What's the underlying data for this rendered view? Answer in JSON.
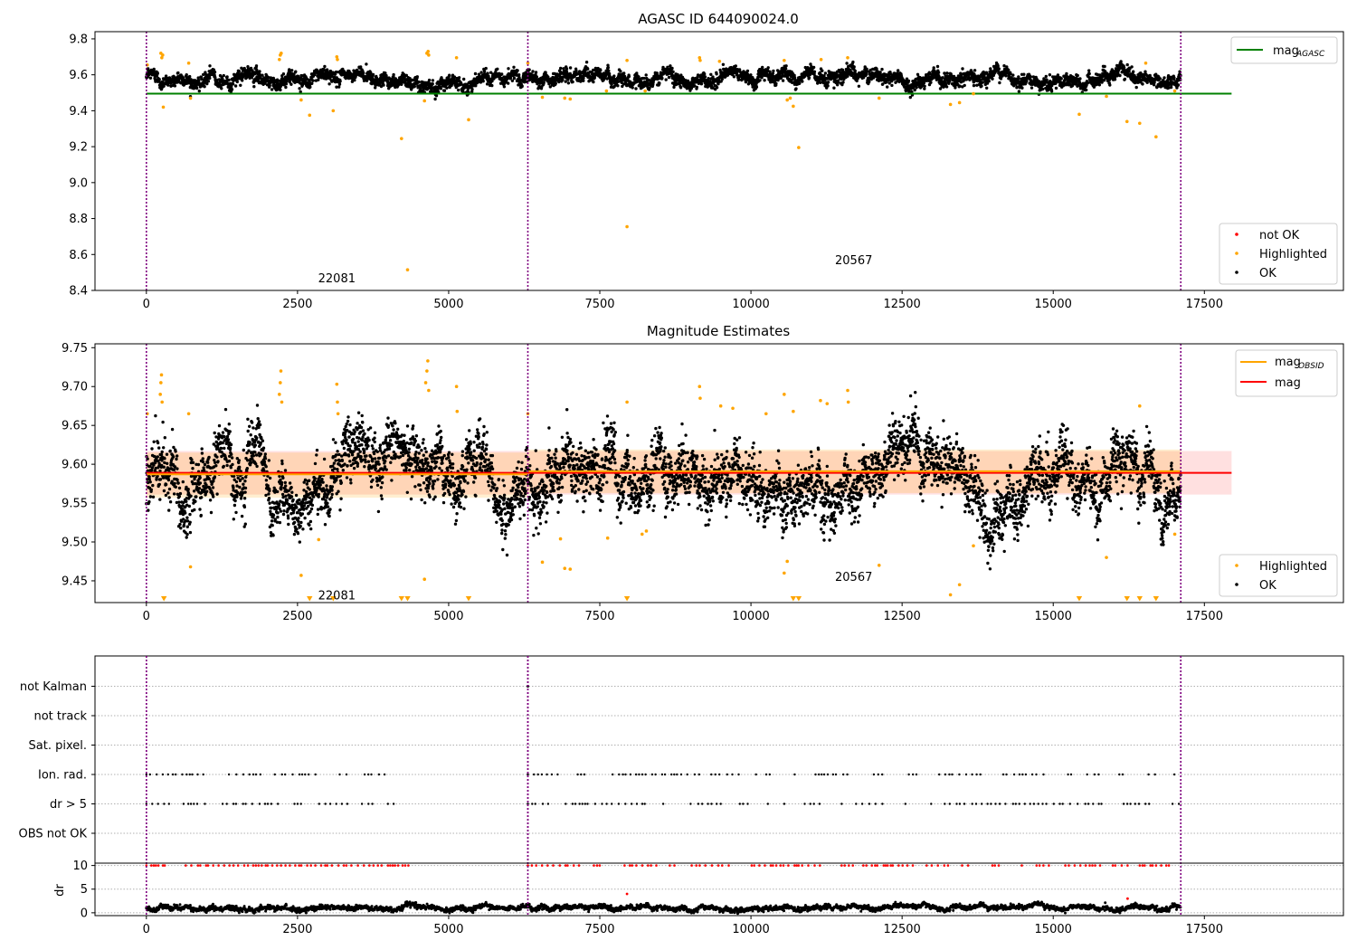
{
  "figure": {
    "colors": {
      "ok": "#000000",
      "not_ok": "#ff0000",
      "highlighted": "#ffa500",
      "agasc_line": "#008000",
      "mag_line": "#ff0000",
      "obsid_line": "#ffa500",
      "obs_boundary": "#800080",
      "band": "#ff0000"
    }
  },
  "chart_data": [
    {
      "type": "scatter",
      "title": "AGASC ID 644090024.0",
      "xlim": [
        -850,
        19800
      ],
      "ylim": [
        8.4,
        9.84
      ],
      "xticks": [
        "0",
        "2500",
        "5000",
        "7500",
        "10000",
        "12500",
        "15000",
        "17500"
      ],
      "yticks": [
        "8.4",
        "8.6",
        "8.8",
        "9.0",
        "9.2",
        "9.4",
        "9.6",
        "9.8"
      ],
      "grid": false,
      "obs_boundaries": [
        0,
        6310,
        17110
      ],
      "obsid_labels": [
        {
          "text": "22081",
          "x": 3150,
          "y": 8.47
        },
        {
          "text": "20567",
          "x": 11700,
          "y": 8.57
        }
      ],
      "hlines": [
        {
          "name": "mag_AGASC",
          "value": 9.495,
          "x": [
            0,
            17950
          ],
          "color": "#008000"
        }
      ],
      "legends": [
        {
          "placement": "upper-right",
          "entries": [
            {
              "label": "mag",
              "subscript": "AGASC",
              "kind": "line",
              "color": "#008000"
            }
          ]
        },
        {
          "placement": "lower-right",
          "entries": [
            {
              "label": "not OK",
              "kind": "dot",
              "color": "#ff0000"
            },
            {
              "label": "Highlighted",
              "kind": "dot",
              "color": "#ffa500"
            },
            {
              "label": "OK",
              "kind": "dot",
              "color": "#000000"
            }
          ]
        }
      ],
      "series": [
        {
          "name": "OK",
          "description": "dense black band",
          "x_range": [
            0,
            17110
          ],
          "y_mean": 9.585,
          "y_spread": 0.03,
          "color": "#000000"
        },
        {
          "name": "Highlighted",
          "color": "#ffa500",
          "points": [
            [
              15,
              9.655
            ],
            [
              240,
              9.72
            ],
            [
              255,
              9.695
            ],
            [
              270,
              9.71
            ],
            [
              280,
              9.42
            ],
            [
              700,
              9.665
            ],
            [
              730,
              9.47
            ],
            [
              2200,
              9.685
            ],
            [
              2215,
              9.71
            ],
            [
              2230,
              9.72
            ],
            [
              2560,
              9.46
            ],
            [
              2700,
              9.375
            ],
            [
              3090,
              9.4
            ],
            [
              3150,
              9.7
            ],
            [
              3160,
              9.685
            ],
            [
              4220,
              9.245
            ],
            [
              4320,
              8.515
            ],
            [
              4600,
              9.455
            ],
            [
              4640,
              9.72
            ],
            [
              4660,
              9.73
            ],
            [
              4670,
              9.71
            ],
            [
              5130,
              9.695
            ],
            [
              5330,
              9.35
            ],
            [
              6310,
              9.665
            ],
            [
              6550,
              9.475
            ],
            [
              6920,
              9.47
            ],
            [
              7010,
              9.465
            ],
            [
              7610,
              9.51
            ],
            [
              7950,
              9.68
            ],
            [
              7950,
              8.755
            ],
            [
              8250,
              9.51
            ],
            [
              9150,
              9.695
            ],
            [
              9160,
              9.68
            ],
            [
              9480,
              9.675
            ],
            [
              10550,
              9.68
            ],
            [
              10600,
              9.46
            ],
            [
              10650,
              9.47
            ],
            [
              10700,
              9.425
            ],
            [
              10790,
              9.195
            ],
            [
              11160,
              9.685
            ],
            [
              11600,
              9.695
            ],
            [
              12120,
              9.47
            ],
            [
              13300,
              9.435
            ],
            [
              13450,
              9.445
            ],
            [
              13680,
              9.495
            ],
            [
              15430,
              9.38
            ],
            [
              15880,
              9.48
            ],
            [
              16220,
              9.34
            ],
            [
              16430,
              9.33
            ],
            [
              16530,
              9.665
            ],
            [
              16700,
              9.255
            ],
            [
              17010,
              9.51
            ]
          ]
        }
      ]
    },
    {
      "type": "scatter",
      "title": "Magnitude Estimates",
      "xlim": [
        -850,
        19800
      ],
      "ylim": [
        9.422,
        9.755
      ],
      "xticks": [
        "0",
        "2500",
        "5000",
        "7500",
        "10000",
        "12500",
        "15000",
        "17500"
      ],
      "yticks": [
        "9.45",
        "9.50",
        "9.55",
        "9.60",
        "9.65",
        "9.70",
        "9.75"
      ],
      "grid": false,
      "obs_boundaries": [
        0,
        6310,
        17110
      ],
      "obsid_labels": [
        {
          "text": "22081",
          "x": 3150,
          "y": 9.432
        },
        {
          "text": "20567",
          "x": 11700,
          "y": 9.456
        }
      ],
      "hlines": [
        {
          "name": "mag",
          "value": 9.589,
          "x": [
            0,
            17950
          ],
          "color": "#ff0000"
        },
        {
          "name": "mag_OBSID",
          "value": 9.587,
          "x": [
            0,
            6310
          ],
          "color": "#ffa500"
        },
        {
          "name": "mag_OBSID",
          "value": 9.591,
          "x": [
            6310,
            17110
          ],
          "color": "#ffa500"
        }
      ],
      "bands": [
        {
          "y": [
            9.561,
            9.617
          ],
          "x": [
            0,
            17950
          ],
          "color": "#ff0000",
          "opacity": 0.12
        },
        {
          "y": [
            9.557,
            9.615
          ],
          "x": [
            0,
            6310
          ],
          "color": "#ffa500",
          "opacity": 0.18
        },
        {
          "y": [
            9.563,
            9.619
          ],
          "x": [
            6310,
            17110
          ],
          "color": "#ffa500",
          "opacity": 0.18
        }
      ],
      "legends": [
        {
          "placement": "upper-right",
          "entries": [
            {
              "label": "mag",
              "subscript": "OBSID",
              "kind": "line",
              "color": "#ffa500"
            },
            {
              "label": "mag",
              "subscript": "",
              "kind": "line",
              "color": "#ff0000"
            }
          ]
        },
        {
          "placement": "lower-right",
          "entries": [
            {
              "label": "Highlighted",
              "kind": "dot",
              "color": "#ffa500"
            },
            {
              "label": "OK",
              "kind": "dot",
              "color": "#000000"
            }
          ]
        }
      ],
      "series": [
        {
          "name": "OK",
          "description": "dense black band",
          "x_range": [
            0,
            17110
          ],
          "y_mean": 9.589,
          "y_spread": 0.03,
          "color": "#000000"
        },
        {
          "name": "Highlighted",
          "color": "#ffa500",
          "points": [
            [
              15,
              9.665
            ],
            [
              230,
              9.69
            ],
            [
              240,
              9.705
            ],
            [
              250,
              9.715
            ],
            [
              260,
              9.68
            ],
            [
              700,
              9.665
            ],
            [
              730,
              9.468
            ],
            [
              2200,
              9.69
            ],
            [
              2215,
              9.705
            ],
            [
              2225,
              9.72
            ],
            [
              2240,
              9.68
            ],
            [
              2560,
              9.457
            ],
            [
              2850,
              9.503
            ],
            [
              3150,
              9.703
            ],
            [
              3160,
              9.68
            ],
            [
              3170,
              9.665
            ],
            [
              4600,
              9.452
            ],
            [
              4620,
              9.705
            ],
            [
              4640,
              9.72
            ],
            [
              4655,
              9.733
            ],
            [
              4670,
              9.695
            ],
            [
              5130,
              9.7
            ],
            [
              5140,
              9.668
            ],
            [
              6310,
              9.665
            ],
            [
              6550,
              9.474
            ],
            [
              6850,
              9.504
            ],
            [
              6920,
              9.466
            ],
            [
              7010,
              9.465
            ],
            [
              7630,
              9.505
            ],
            [
              7950,
              9.68
            ],
            [
              8200,
              9.51
            ],
            [
              8270,
              9.514
            ],
            [
              9150,
              9.7
            ],
            [
              9160,
              9.685
            ],
            [
              9500,
              9.675
            ],
            [
              9700,
              9.672
            ],
            [
              10250,
              9.665
            ],
            [
              10550,
              9.69
            ],
            [
              10600,
              9.475
            ],
            [
              10550,
              9.46
            ],
            [
              10700,
              9.668
            ],
            [
              11150,
              9.682
            ],
            [
              11260,
              9.678
            ],
            [
              11600,
              9.695
            ],
            [
              11610,
              9.68
            ],
            [
              12120,
              9.47
            ],
            [
              13300,
              9.432
            ],
            [
              13450,
              9.445
            ],
            [
              13680,
              9.495
            ],
            [
              15880,
              9.48
            ],
            [
              16430,
              9.675
            ],
            [
              17010,
              9.51
            ]
          ]
        },
        {
          "name": "below range",
          "marker": "triangle-down",
          "color": "#ffa500",
          "x": [
            290,
            2700,
            3090,
            4220,
            4320,
            5330,
            7950,
            10700,
            10790,
            15430,
            16220,
            16430,
            16700
          ]
        }
      ]
    },
    {
      "type": "scatter",
      "xlim": [
        -850,
        19800
      ],
      "categories": [
        "not Kalman",
        "not track",
        "Sat. pixel.",
        "Ion. rad.",
        "dr > 5",
        "OBS not OK"
      ],
      "grid": true,
      "obs_boundaries": [
        0,
        6310,
        17110
      ],
      "flag_rows": {
        "not Kalman": {
          "x": [
            6310
          ]
        },
        "not track": {
          "x": []
        },
        "Sat. pixel.": {
          "x": []
        },
        "Ion. rad.": {
          "segments": [
            [
              0,
              4350
            ],
            [
              6310,
              17110
            ]
          ]
        },
        "dr > 5": {
          "segments": [
            [
              0,
              4350
            ],
            [
              6310,
              17110
            ]
          ]
        },
        "OBS not OK": {
          "x": []
        }
      }
    },
    {
      "type": "scatter",
      "xlim": [
        -850,
        19800
      ],
      "ylabel": "dr",
      "ylim": [
        -0.6,
        10.5
      ],
      "xticks": [
        "0",
        "2500",
        "5000",
        "7500",
        "10000",
        "12500",
        "15000",
        "17500"
      ],
      "yticks": [
        "0",
        "5",
        "10"
      ],
      "grid": true,
      "obs_boundaries": [
        0,
        6310,
        17110
      ],
      "series": [
        {
          "name": "OK",
          "description": "dense black band",
          "x_range": [
            0,
            17110
          ],
          "y_mean": 1.0,
          "y_spread": 0.45,
          "color": "#000000"
        },
        {
          "name": "not OK",
          "color": "#ff0000",
          "clipped_at": 10,
          "segments": [
            [
              0,
              4350
            ],
            [
              6310,
              17110
            ]
          ],
          "extra_points": [
            [
              7950,
              4.0
            ],
            [
              16230,
              3.0
            ]
          ]
        }
      ]
    }
  ]
}
